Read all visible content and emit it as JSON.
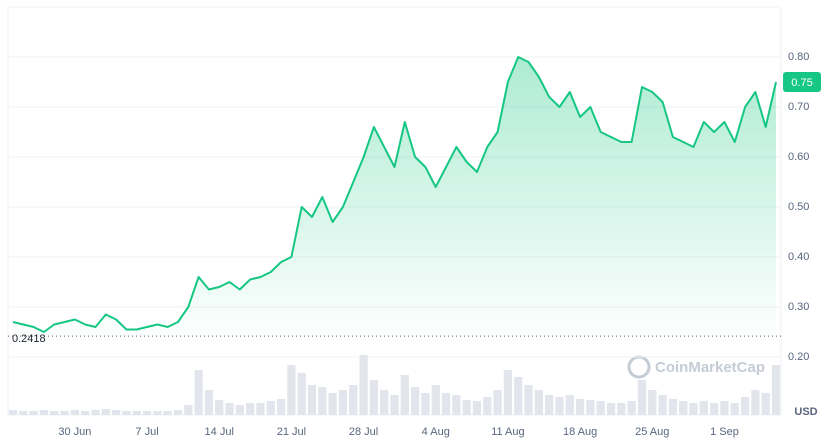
{
  "chart_data": {
    "type": "line",
    "x": [
      "24 Jun",
      "25 Jun",
      "26 Jun",
      "27 Jun",
      "28 Jun",
      "29 Jun",
      "30 Jun",
      "1 Jul",
      "2 Jul",
      "3 Jul",
      "4 Jul",
      "5 Jul",
      "6 Jul",
      "7 Jul",
      "8 Jul",
      "9 Jul",
      "10 Jul",
      "11 Jul",
      "12 Jul",
      "13 Jul",
      "14 Jul",
      "15 Jul",
      "16 Jul",
      "17 Jul",
      "18 Jul",
      "19 Jul",
      "20 Jul",
      "21 Jul",
      "22 Jul",
      "23 Jul",
      "24 Jul",
      "25 Jul",
      "26 Jul",
      "27 Jul",
      "28 Jul",
      "29 Jul",
      "30 Jul",
      "31 Jul",
      "1 Aug",
      "2 Aug",
      "3 Aug",
      "4 Aug",
      "5 Aug",
      "6 Aug",
      "7 Aug",
      "8 Aug",
      "9 Aug",
      "10 Aug",
      "11 Aug",
      "12 Aug",
      "13 Aug",
      "14 Aug",
      "15 Aug",
      "16 Aug",
      "17 Aug",
      "18 Aug",
      "19 Aug",
      "20 Aug",
      "21 Aug",
      "22 Aug",
      "23 Aug",
      "24 Aug",
      "25 Aug",
      "26 Aug",
      "27 Aug",
      "28 Aug",
      "29 Aug",
      "30 Aug",
      "31 Aug",
      "1 Sep",
      "2 Sep",
      "3 Sep",
      "4 Sep",
      "5 Sep",
      "6 Sep"
    ],
    "series": [
      {
        "name": "Price",
        "color": "#16c784",
        "values": [
          0.27,
          0.265,
          0.26,
          0.25,
          0.265,
          0.27,
          0.275,
          0.265,
          0.26,
          0.285,
          0.275,
          0.255,
          0.255,
          0.26,
          0.265,
          0.26,
          0.27,
          0.3,
          0.36,
          0.335,
          0.34,
          0.35,
          0.335,
          0.355,
          0.36,
          0.37,
          0.39,
          0.4,
          0.5,
          0.48,
          0.52,
          0.47,
          0.5,
          0.55,
          0.6,
          0.66,
          0.62,
          0.58,
          0.67,
          0.6,
          0.58,
          0.54,
          0.58,
          0.62,
          0.59,
          0.57,
          0.62,
          0.65,
          0.75,
          0.8,
          0.79,
          0.76,
          0.72,
          0.7,
          0.73,
          0.68,
          0.7,
          0.65,
          0.64,
          0.63,
          0.63,
          0.74,
          0.73,
          0.71,
          0.64,
          0.63,
          0.62,
          0.67,
          0.65,
          0.67,
          0.63,
          0.7,
          0.73,
          0.66,
          0.75
        ]
      },
      {
        "name": "Volume",
        "color": "#e2e5ec",
        "values": [
          5,
          4,
          4,
          5,
          4,
          4,
          5,
          4,
          5,
          6,
          5,
          4,
          4,
          4,
          4,
          4,
          5,
          10,
          45,
          25,
          15,
          12,
          10,
          12,
          12,
          14,
          16,
          50,
          42,
          30,
          28,
          22,
          25,
          30,
          60,
          35,
          25,
          20,
          40,
          28,
          22,
          30,
          22,
          20,
          15,
          14,
          18,
          25,
          45,
          38,
          30,
          25,
          20,
          18,
          20,
          16,
          15,
          14,
          12,
          12,
          14,
          35,
          25,
          20,
          16,
          14,
          12,
          14,
          12,
          14,
          12,
          18,
          25,
          22,
          50
        ]
      }
    ],
    "ylim": [
      0.08,
      0.9
    ],
    "yticks": [
      0.2,
      0.3,
      0.4,
      0.5,
      0.6,
      0.7,
      0.8
    ],
    "yticklabels": [
      "0.20",
      "0.30",
      "0.40",
      "0.50",
      "0.60",
      "0.70",
      "0.80"
    ],
    "xticks": [
      "30 Jun",
      "7 Jul",
      "14 Jul",
      "21 Jul",
      "28 Jul",
      "4 Aug",
      "11 Aug",
      "18 Aug",
      "25 Aug",
      "1 Sep"
    ],
    "grid": true,
    "baseline": 0.2418,
    "current_price": 0.75,
    "current_price_label": "0.75",
    "currency": "USD",
    "watermark": "CoinMarketCap"
  }
}
